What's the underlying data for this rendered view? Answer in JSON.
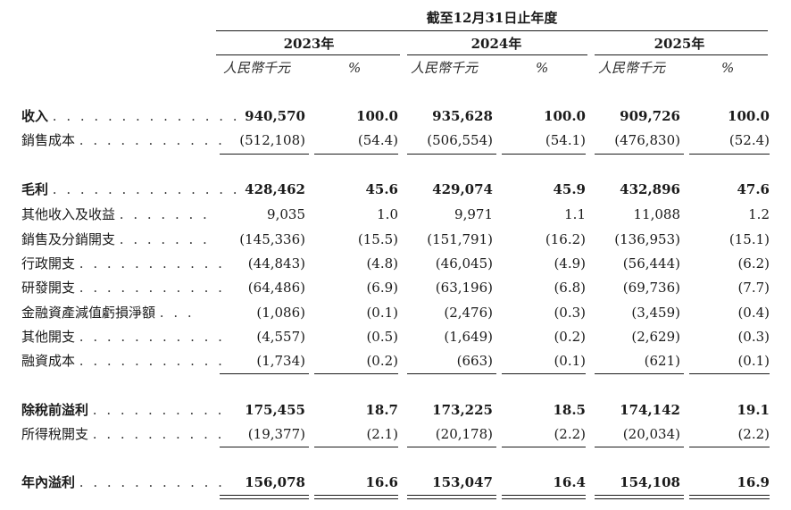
{
  "header": {
    "period": "截至12月31日止年度",
    "years": [
      "2023年",
      "2024年",
      "2025年"
    ],
    "unit_currency": "人民幣千元",
    "unit_percent": "%"
  },
  "rows": [
    {
      "label": "收入",
      "dots": ". . . . . . . . . . . . . .",
      "bold": true,
      "values": [
        "940,570",
        "100.0",
        "935,628",
        "100.0",
        "909,726",
        "100.0"
      ]
    },
    {
      "label": "銷售成本",
      "dots": ". . . . . . . . . . .",
      "bold": false,
      "values": [
        "(512,108)",
        "(54.4)",
        "(506,554)",
        "(54.1)",
        "(476,830)",
        "(52.4)"
      ]
    },
    {
      "label": "毛利",
      "dots": ". . . . . . . . . . . . . .",
      "bold": true,
      "values": [
        "428,462",
        "45.6",
        "429,074",
        "45.9",
        "432,896",
        "47.6"
      ]
    },
    {
      "label": "其他收入及收益",
      "dots": ". . . . . . .",
      "bold": false,
      "values": [
        "9,035",
        "1.0",
        "9,971",
        "1.1",
        "11,088",
        "1.2"
      ]
    },
    {
      "label": "銷售及分銷開支",
      "dots": ". . . . . . .",
      "bold": false,
      "values": [
        "(145,336)",
        "(15.5)",
        "(151,791)",
        "(16.2)",
        "(136,953)",
        "(15.1)"
      ]
    },
    {
      "label": "行政開支",
      "dots": ". . . . . . . . . . .",
      "bold": false,
      "values": [
        "(44,843)",
        "(4.8)",
        "(46,045)",
        "(4.9)",
        "(56,444)",
        "(6.2)"
      ]
    },
    {
      "label": "研發開支",
      "dots": ". . . . . . . . . . .",
      "bold": false,
      "values": [
        "(64,486)",
        "(6.9)",
        "(63,196)",
        "(6.8)",
        "(69,736)",
        "(7.7)"
      ]
    },
    {
      "label": "金融資產減值虧損淨額",
      "dots": ". . .",
      "bold": false,
      "values": [
        "(1,086)",
        "(0.1)",
        "(2,476)",
        "(0.3)",
        "(3,459)",
        "(0.4)"
      ]
    },
    {
      "label": "其他開支",
      "dots": ". . . . . . . . . . .",
      "bold": false,
      "values": [
        "(4,557)",
        "(0.5)",
        "(1,649)",
        "(0.2)",
        "(2,629)",
        "(0.3)"
      ]
    },
    {
      "label": "融資成本",
      "dots": ". . . . . . . . . . .",
      "bold": false,
      "values": [
        "(1,734)",
        "(0.2)",
        "(663)",
        "(0.1)",
        "(621)",
        "(0.1)"
      ]
    },
    {
      "label": "除稅前溢利",
      "dots": ". . . . . . . . . .",
      "bold": true,
      "values": [
        "175,455",
        "18.7",
        "173,225",
        "18.5",
        "174,142",
        "19.1"
      ]
    },
    {
      "label": "所得稅開支",
      "dots": ". . . . . . . . . .",
      "bold": false,
      "values": [
        "(19,377)",
        "(2.1)",
        "(20,178)",
        "(2.2)",
        "(20,034)",
        "(2.2)"
      ]
    },
    {
      "label": "年內溢利",
      "dots": ". . . . . . . . . . .",
      "bold": true,
      "values": [
        "156,078",
        "16.6",
        "153,047",
        "16.4",
        "154,108",
        "16.9"
      ]
    }
  ]
}
